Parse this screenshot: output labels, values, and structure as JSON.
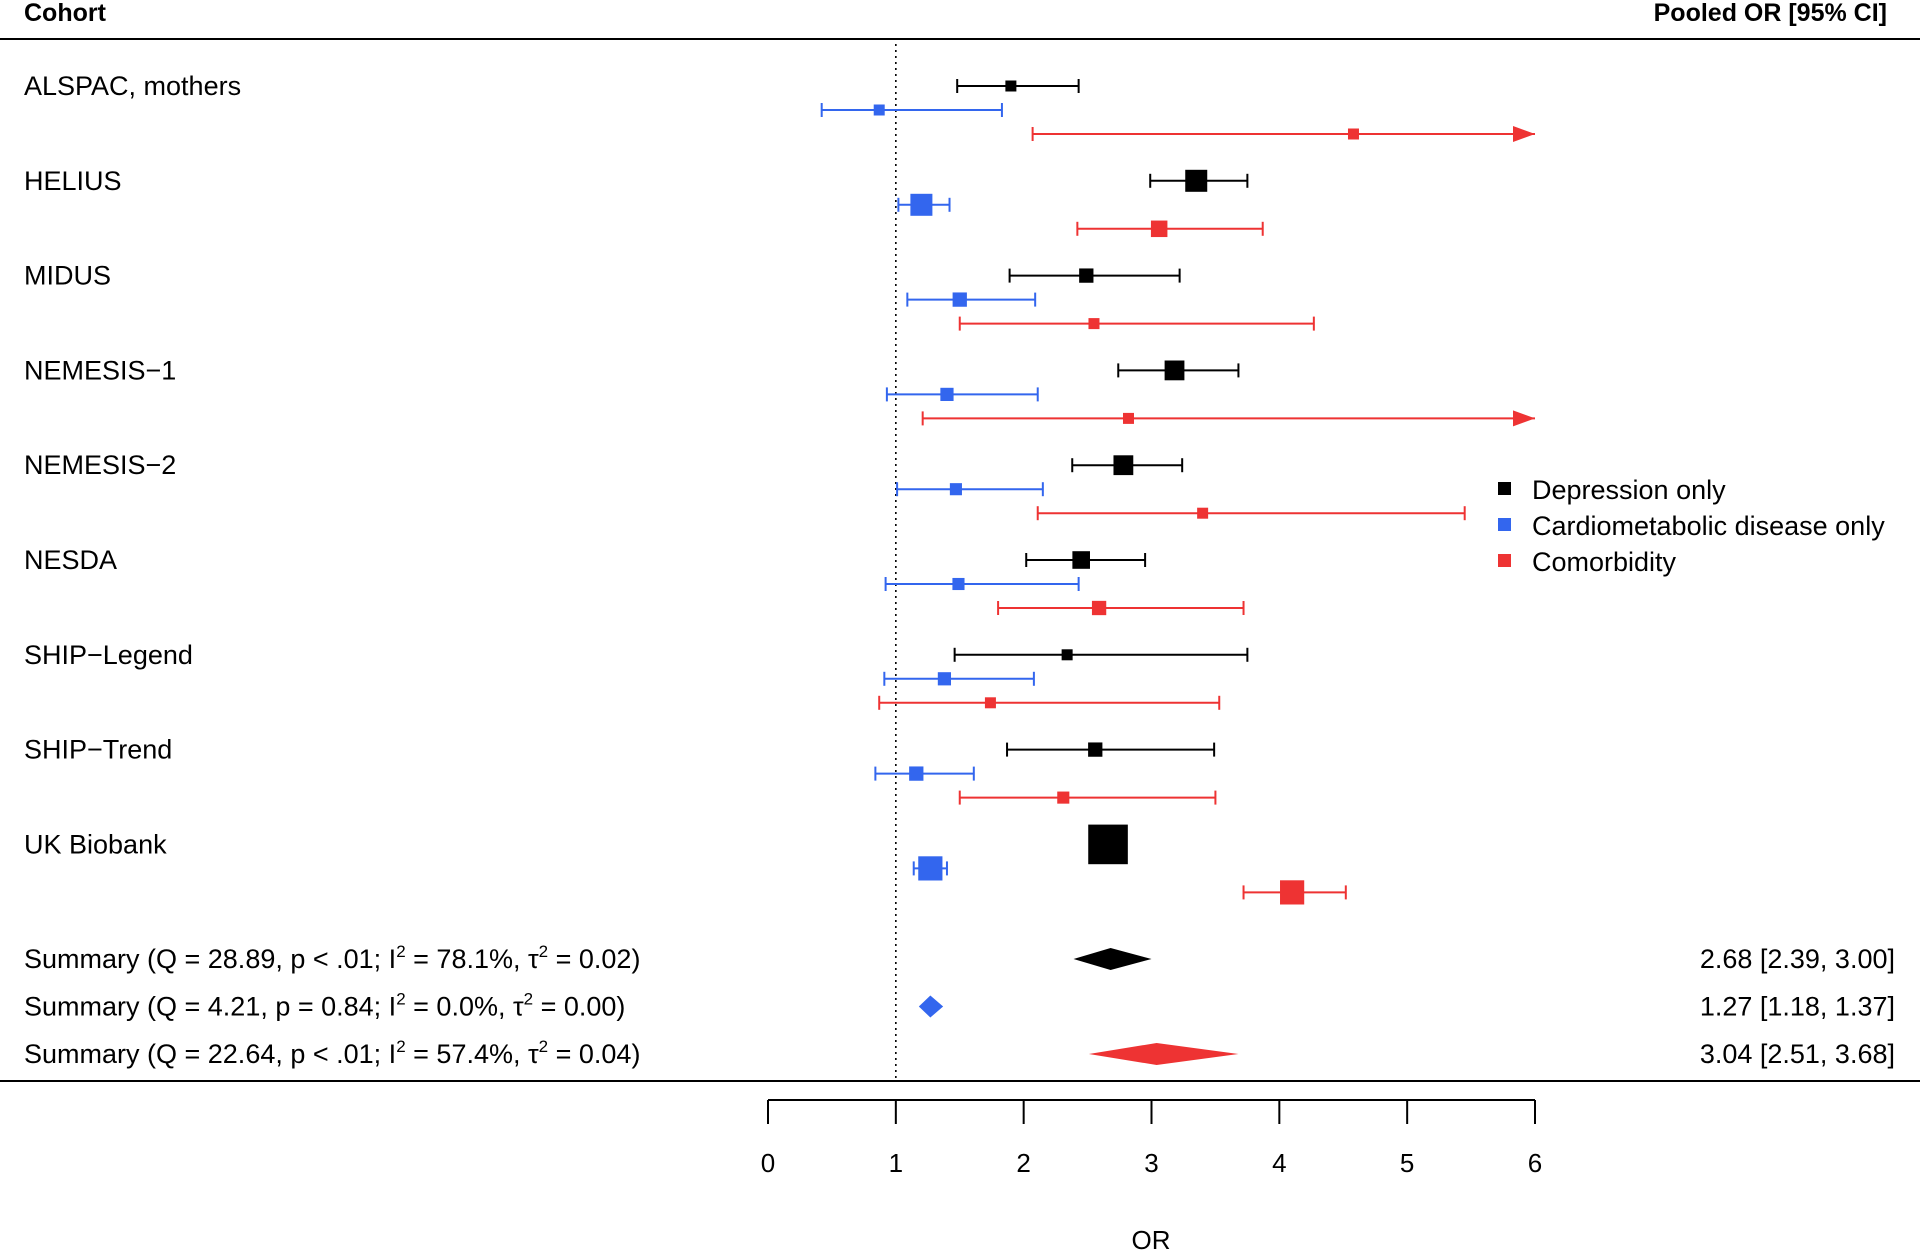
{
  "header": {
    "left": "Cohort",
    "right": "Pooled OR [95% CI]"
  },
  "legend": {
    "placement": "right",
    "items": [
      {
        "label": "Depression only",
        "color": "#000000"
      },
      {
        "label": "Cardiometabolic disease only",
        "color": "#3366ee"
      },
      {
        "label": "Comorbidity",
        "color": "#ee3333"
      }
    ]
  },
  "summaries": [
    {
      "prefix": "Summary (Q = 28.89, p < .01; I",
      "mid": " = 78.1%, τ",
      "suffix": " = 0.02)",
      "result": "2.68 [2.39, 3.00]",
      "color": "#000000"
    },
    {
      "prefix": "Summary (Q = 4.21, p = 0.84; I",
      "mid": " = 0.0%, τ",
      "suffix": " = 0.00)",
      "result": "1.27 [1.18, 1.37]",
      "color": "#3366ee"
    },
    {
      "prefix": "Summary (Q = 22.64, p < .01; I",
      "mid": " = 57.4%, τ",
      "suffix": " = 0.04)",
      "result": "3.04 [2.51, 3.68]",
      "color": "#ee3333"
    }
  ],
  "chart_data": {
    "type": "forest",
    "xlabel": "OR",
    "xlim": [
      0,
      6
    ],
    "xticks": [
      "0",
      "1",
      "2",
      "3",
      "4",
      "5",
      "6"
    ],
    "reference_line": 1,
    "series": [
      {
        "name": "Depression only",
        "color": "#000000"
      },
      {
        "name": "Cardiometabolic disease only",
        "color": "#3366ee"
      },
      {
        "name": "Comorbidity",
        "color": "#ee3333"
      }
    ],
    "cohorts": [
      {
        "name": "ALSPAC, mothers",
        "estimates": [
          {
            "or": 1.9,
            "lo": 1.48,
            "hi": 2.43,
            "w": 1
          },
          {
            "or": 0.87,
            "lo": 0.42,
            "hi": 1.83,
            "w": 1
          },
          {
            "or": 4.58,
            "lo": 2.07,
            "hi": 6.0,
            "w": 1,
            "arrow": true
          }
        ]
      },
      {
        "name": "HELIUS",
        "estimates": [
          {
            "or": 3.35,
            "lo": 2.99,
            "hi": 3.75,
            "w": 2
          },
          {
            "or": 1.2,
            "lo": 1.02,
            "hi": 1.42,
            "w": 2
          },
          {
            "or": 3.06,
            "lo": 2.42,
            "hi": 3.87,
            "w": 1.5
          }
        ]
      },
      {
        "name": "MIDUS",
        "estimates": [
          {
            "or": 2.49,
            "lo": 1.89,
            "hi": 3.22,
            "w": 1.3
          },
          {
            "or": 1.5,
            "lo": 1.09,
            "hi": 2.09,
            "w": 1.3
          },
          {
            "or": 2.55,
            "lo": 1.5,
            "hi": 4.27,
            "w": 1
          }
        ]
      },
      {
        "name": "NEMESIS−1",
        "estimates": [
          {
            "or": 3.18,
            "lo": 2.74,
            "hi": 3.68,
            "w": 1.8
          },
          {
            "or": 1.4,
            "lo": 0.93,
            "hi": 2.11,
            "w": 1.2
          },
          {
            "or": 2.82,
            "lo": 1.21,
            "hi": 6.0,
            "w": 1,
            "arrow": true
          }
        ]
      },
      {
        "name": "NEMESIS−2",
        "estimates": [
          {
            "or": 2.78,
            "lo": 2.38,
            "hi": 3.24,
            "w": 1.8
          },
          {
            "or": 1.47,
            "lo": 1.01,
            "hi": 2.15,
            "w": 1.1
          },
          {
            "or": 3.4,
            "lo": 2.11,
            "hi": 5.45,
            "w": 1
          }
        ]
      },
      {
        "name": "NESDA",
        "estimates": [
          {
            "or": 2.45,
            "lo": 2.02,
            "hi": 2.95,
            "w": 1.6
          },
          {
            "or": 1.49,
            "lo": 0.92,
            "hi": 2.43,
            "w": 1.1
          },
          {
            "or": 2.59,
            "lo": 1.8,
            "hi": 3.72,
            "w": 1.3
          }
        ]
      },
      {
        "name": "SHIP−Legend",
        "estimates": [
          {
            "or": 2.34,
            "lo": 1.46,
            "hi": 3.75,
            "w": 1
          },
          {
            "or": 1.38,
            "lo": 0.91,
            "hi": 2.08,
            "w": 1.2
          },
          {
            "or": 1.74,
            "lo": 0.87,
            "hi": 3.53,
            "w": 1
          }
        ]
      },
      {
        "name": "SHIP−Trend",
        "estimates": [
          {
            "or": 2.56,
            "lo": 1.87,
            "hi": 3.49,
            "w": 1.3
          },
          {
            "or": 1.16,
            "lo": 0.84,
            "hi": 1.61,
            "w": 1.3
          },
          {
            "or": 2.31,
            "lo": 1.5,
            "hi": 3.5,
            "w": 1.1
          }
        ]
      },
      {
        "name": "UK Biobank",
        "estimates": [
          {
            "or": 2.66,
            "lo": 2.55,
            "hi": 2.77,
            "w": 3.6
          },
          {
            "or": 1.27,
            "lo": 1.14,
            "hi": 1.4,
            "w": 2.2
          },
          {
            "or": 4.1,
            "lo": 3.72,
            "hi": 4.52,
            "w": 2.2
          }
        ]
      }
    ],
    "pooled": [
      {
        "or": 2.68,
        "lo": 2.39,
        "hi": 3.0
      },
      {
        "or": 1.27,
        "lo": 1.18,
        "hi": 1.37
      },
      {
        "or": 3.04,
        "lo": 2.51,
        "hi": 3.68
      }
    ]
  }
}
